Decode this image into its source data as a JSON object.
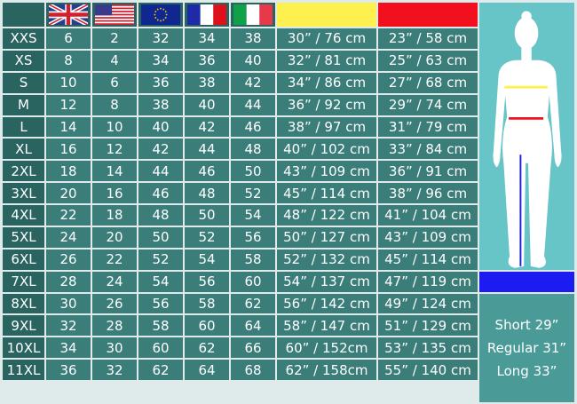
{
  "header": {
    "flags": [
      {
        "country": "UK",
        "icon": "uk-flag-icon"
      },
      {
        "country": "US",
        "icon": "us-flag-icon"
      },
      {
        "country": "EU",
        "icon": "eu-flag-icon"
      },
      {
        "country": "France",
        "icon": "france-flag-icon"
      },
      {
        "country": "Italy",
        "icon": "italy-flag-icon"
      }
    ],
    "waist_color": "#fdf04f",
    "hip_color": "#f20f1e"
  },
  "rows": [
    {
      "size": "XXS",
      "uk": "6",
      "us": "2",
      "eu": "32",
      "fr": "34",
      "it": "38",
      "waist": "30” / 76 cm",
      "hip": "23” / 58 cm"
    },
    {
      "size": "XS",
      "uk": "8",
      "us": "4",
      "eu": "34",
      "fr": "36",
      "it": "40",
      "waist": "32” / 81 cm",
      "hip": "25” / 63 cm"
    },
    {
      "size": "S",
      "uk": "10",
      "us": "6",
      "eu": "36",
      "fr": "38",
      "it": "42",
      "waist": "34” / 86 cm",
      "hip": "27” / 68 cm"
    },
    {
      "size": "M",
      "uk": "12",
      "us": "8",
      "eu": "38",
      "fr": "40",
      "it": "44",
      "waist": "36” / 92 cm",
      "hip": "29” / 74 cm"
    },
    {
      "size": "L",
      "uk": "14",
      "us": "10",
      "eu": "40",
      "fr": "42",
      "it": "46",
      "waist": "38” / 97 cm",
      "hip": "31” / 79 cm"
    },
    {
      "size": "XL",
      "uk": "16",
      "us": "12",
      "eu": "42",
      "fr": "44",
      "it": "48",
      "waist": "40” / 102 cm",
      "hip": "33” / 84 cm"
    },
    {
      "size": "2XL",
      "uk": "18",
      "us": "14",
      "eu": "44",
      "fr": "46",
      "it": "50",
      "waist": "43” / 109 cm",
      "hip": "36” / 91 cm"
    },
    {
      "size": "3XL",
      "uk": "20",
      "us": "16",
      "eu": "46",
      "fr": "48",
      "it": "52",
      "waist": "45” / 114 cm",
      "hip": "38” / 96 cm"
    },
    {
      "size": "4XL",
      "uk": "22",
      "us": "18",
      "eu": "48",
      "fr": "50",
      "it": "54",
      "waist": "48” / 122 cm",
      "hip": "41” / 104 cm"
    },
    {
      "size": "5XL",
      "uk": "24",
      "us": "20",
      "eu": "50",
      "fr": "52",
      "it": "56",
      "waist": "50” / 127 cm",
      "hip": "43” / 109 cm"
    },
    {
      "size": "6XL",
      "uk": "26",
      "us": "22",
      "eu": "52",
      "fr": "54",
      "it": "58",
      "waist": "52” / 132 cm",
      "hip": "45” / 114 cm"
    },
    {
      "size": "7XL",
      "uk": "28",
      "us": "24",
      "eu": "54",
      "fr": "56",
      "it": "60",
      "waist": "54” / 137 cm",
      "hip": "47” / 119 cm"
    },
    {
      "size": "8XL",
      "uk": "30",
      "us": "26",
      "eu": "56",
      "fr": "58",
      "it": "62",
      "waist": "56” / 142 cm",
      "hip": "49” / 124 cm"
    },
    {
      "size": "9XL",
      "uk": "32",
      "us": "28",
      "eu": "58",
      "fr": "60",
      "it": "64",
      "waist": "58” / 147 cm",
      "hip": "51” / 129 cm"
    },
    {
      "size": "10XL",
      "uk": "34",
      "us": "30",
      "eu": "60",
      "fr": "62",
      "it": "66",
      "waist": "60” / 152cm",
      "hip": "53” / 135 cm"
    },
    {
      "size": "11XL",
      "uk": "36",
      "us": "32",
      "eu": "62",
      "fr": "64",
      "it": "68",
      "waist": "62” / 158cm",
      "hip": "55” / 140 cm"
    }
  ],
  "figure": {
    "icon": "body-silhouette-icon",
    "inseam_color": "#1c1cf2"
  },
  "lengths": [
    "Short 29”",
    "Regular 31”",
    "Long 33”"
  ]
}
